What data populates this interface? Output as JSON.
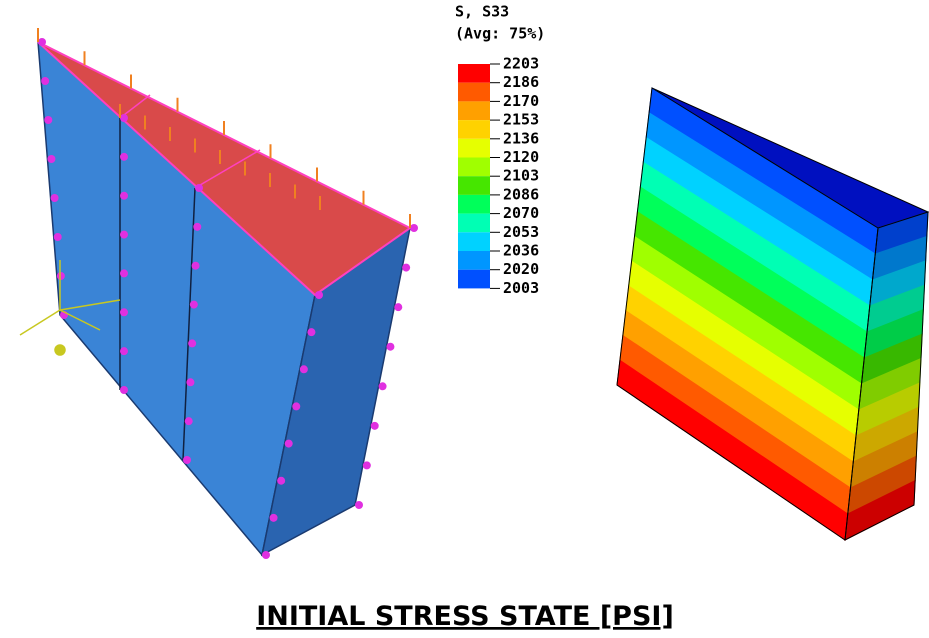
{
  "legend": {
    "title": "S, S33",
    "subtitle": "(Avg: 75%)",
    "values": [
      2203,
      2186,
      2170,
      2153,
      2136,
      2120,
      2103,
      2086,
      2070,
      2053,
      2036,
      2020,
      2003
    ],
    "colors": [
      "#ff0000",
      "#ff5a00",
      "#ffa000",
      "#ffd200",
      "#e6ff00",
      "#a0ff00",
      "#46e600",
      "#00ff5a",
      "#00ffb4",
      "#00d2ff",
      "#0096ff",
      "#0050ff",
      "#0000ff"
    ]
  },
  "caption": "INITIAL STRESS STATE [PSI]"
}
